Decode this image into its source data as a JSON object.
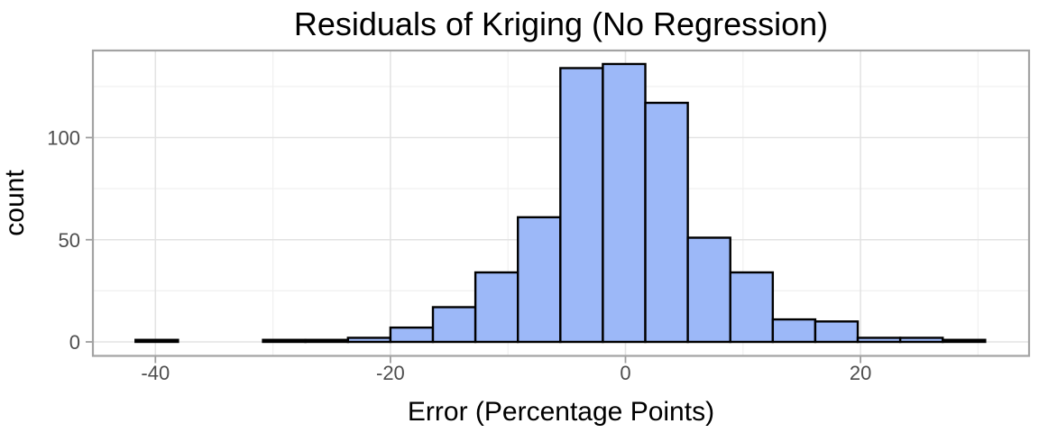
{
  "figure": {
    "title": "Residuals of Kriging (No Regression)",
    "x_axis_label": "Error (Percentage Points)",
    "y_axis_label": "count"
  },
  "chart_data": {
    "type": "bar",
    "subtype": "histogram",
    "title": "Residuals of Kriging (No Regression)",
    "xlabel": "Error (Percentage Points)",
    "ylabel": "count",
    "bin_start": -41.69,
    "bin_width": 3.615,
    "bin_edges": [
      -41.69,
      -38.08,
      -34.46,
      -30.85,
      -27.23,
      -23.62,
      -20.0,
      -16.39,
      -12.77,
      -9.16,
      -5.54,
      -1.93,
      1.69,
      5.3,
      8.92,
      12.53,
      16.15,
      19.76,
      23.38,
      26.99,
      30.61
    ],
    "counts": [
      1,
      0,
      0,
      1,
      1,
      2,
      7,
      17,
      34,
      61,
      134,
      136,
      117,
      51,
      34,
      11,
      10,
      2,
      2,
      1
    ],
    "x_ticks_major": [
      -40,
      -20,
      0,
      20
    ],
    "x_ticks_minor": [
      -30,
      -10,
      10,
      30
    ],
    "y_ticks_major": [
      0,
      50,
      100
    ],
    "y_ticks_minor": [
      25,
      75,
      125
    ],
    "xlim": [
      -45.3,
      34.4
    ],
    "ylim": [
      -6.8,
      142.6
    ],
    "grid": true,
    "legend": "none",
    "colors": {
      "bar_fill": "#9cb8f8",
      "bar_stroke": "#000000",
      "grid_major": "#e3e3e3",
      "grid_minor": "#f0f0f0",
      "panel_border": "#a3a3a3",
      "tick_mark": "#9e9e9e",
      "tick_label": "#4d4d4d",
      "text": "#000000",
      "background": "#ffffff"
    }
  }
}
